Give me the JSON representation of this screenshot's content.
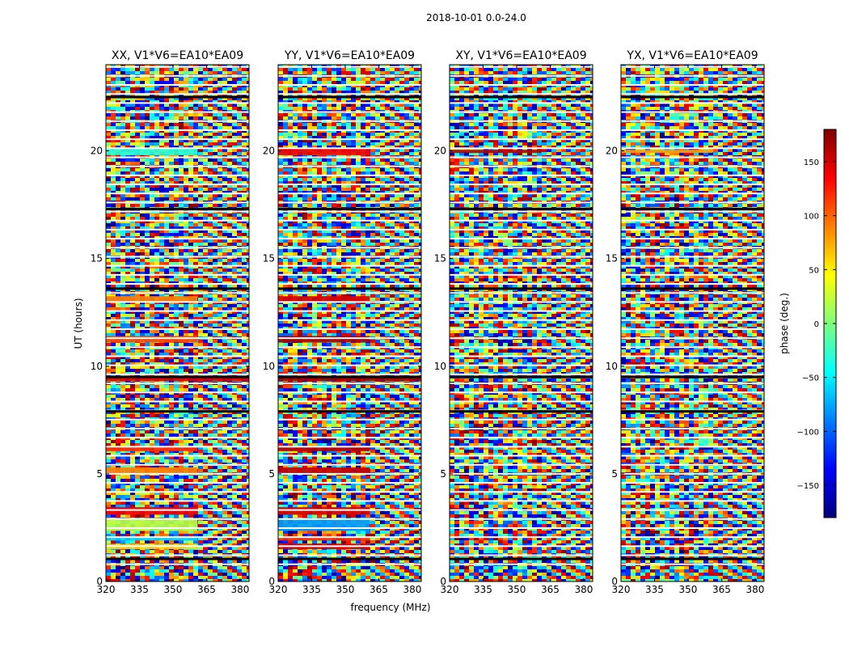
{
  "suptitle": "2018-10-01 0.0-24.0",
  "xlabel": "frequency (MHz)",
  "ylabel": "UT (hours)",
  "colorbar": {
    "label": "phase (deg.)",
    "range": [
      -180,
      180
    ],
    "ticks": [
      150,
      100,
      50,
      0,
      -50,
      -100,
      -150
    ],
    "tick_labels": [
      "150",
      "100",
      "50",
      "0",
      "−50",
      "−100",
      "−150"
    ],
    "colormap": "jet",
    "colors": [
      "#00007f",
      "#0000ff",
      "#007fff",
      "#00ffff",
      "#7fff7f",
      "#ffff00",
      "#ff7f00",
      "#ff0000",
      "#7f0000"
    ]
  },
  "chart_data": [
    {
      "type": "heatmap",
      "title": "XX, V1*V6=EA10*EA09",
      "xlim": [
        320,
        384
      ],
      "ylim": [
        0,
        24
      ],
      "xticks": [
        320,
        335,
        350,
        365,
        380
      ],
      "yticks": [
        0,
        5,
        10,
        15,
        20
      ],
      "value": "phase (deg.)",
      "flagged_hours": [
        1.05,
        7.9,
        9.5,
        13.6,
        17.3,
        22.5
      ],
      "coherent_bands": [
        {
          "ut": [
            1.5,
            1.75
          ],
          "freq": [
            320,
            361
          ],
          "phase": 60
        },
        {
          "ut": [
            1.9,
            2.05
          ],
          "freq": [
            320,
            361
          ],
          "phase": -60
        },
        {
          "ut": [
            2.35,
            2.95
          ],
          "freq": [
            320,
            361
          ],
          "phase": 20
        },
        {
          "ut": [
            3.1,
            3.45
          ],
          "freq": [
            320,
            361
          ],
          "phase": 140
        },
        {
          "ut": [
            5.0,
            5.3
          ],
          "freq": [
            320,
            361
          ],
          "phase": 90
        },
        {
          "ut": [
            6.05,
            6.3
          ],
          "freq": [
            320,
            361
          ],
          "phase": 120
        },
        {
          "ut": [
            9.3,
            9.45
          ],
          "freq": [
            320,
            384
          ],
          "phase": 150
        },
        {
          "ut": [
            11.1,
            11.4
          ],
          "freq": [
            320,
            361
          ],
          "phase": 110
        },
        {
          "ut": [
            13.0,
            13.25
          ],
          "freq": [
            320,
            361
          ],
          "phase": 90
        },
        {
          "ut": [
            19.8,
            20.1
          ],
          "freq": [
            320,
            361
          ],
          "phase": -30
        }
      ]
    },
    {
      "type": "heatmap",
      "title": "YY, V1*V6=EA10*EA09",
      "xlim": [
        320,
        384
      ],
      "ylim": [
        0,
        24
      ],
      "xticks": [
        320,
        335,
        350,
        365,
        380
      ],
      "yticks": [
        0,
        5,
        10,
        15,
        20
      ],
      "value": "phase (deg.)",
      "flagged_hours": [
        1.05,
        7.9,
        9.5,
        13.6,
        17.3,
        22.5
      ],
      "coherent_bands": [
        {
          "ut": [
            1.5,
            1.75
          ],
          "freq": [
            320,
            361
          ],
          "phase": 150
        },
        {
          "ut": [
            1.9,
            2.05
          ],
          "freq": [
            320,
            361
          ],
          "phase": 120
        },
        {
          "ut": [
            2.35,
            2.95
          ],
          "freq": [
            320,
            361
          ],
          "phase": -80
        },
        {
          "ut": [
            3.1,
            3.45
          ],
          "freq": [
            320,
            361
          ],
          "phase": 150
        },
        {
          "ut": [
            5.0,
            5.3
          ],
          "freq": [
            320,
            361
          ],
          "phase": 155
        },
        {
          "ut": [
            6.05,
            6.3
          ],
          "freq": [
            320,
            361
          ],
          "phase": 160
        },
        {
          "ut": [
            9.3,
            9.45
          ],
          "freq": [
            320,
            384
          ],
          "phase": 170
        },
        {
          "ut": [
            11.1,
            11.4
          ],
          "freq": [
            320,
            361
          ],
          "phase": 165
        },
        {
          "ut": [
            13.0,
            13.25
          ],
          "freq": [
            320,
            361
          ],
          "phase": 150
        },
        {
          "ut": [
            19.8,
            20.1
          ],
          "freq": [
            320,
            361
          ],
          "phase": 140
        }
      ]
    },
    {
      "type": "heatmap",
      "title": "XY, V1*V6=EA10*EA09",
      "xlim": [
        320,
        384
      ],
      "ylim": [
        0,
        24
      ],
      "xticks": [
        320,
        335,
        350,
        365,
        380
      ],
      "yticks": [
        0,
        5,
        10,
        15,
        20
      ],
      "value": "phase (deg.)",
      "flagged_hours": [
        1.05,
        7.9,
        9.5,
        13.6,
        17.3,
        22.5
      ],
      "coherent_bands": [
        {
          "ut": [
            19.9,
            20.05
          ],
          "freq": [
            320,
            361
          ],
          "phase": 160
        }
      ]
    },
    {
      "type": "heatmap",
      "title": "YX, V1*V6=EA10*EA09",
      "xlim": [
        320,
        384
      ],
      "ylim": [
        0,
        24
      ],
      "xticks": [
        320,
        335,
        350,
        365,
        380
      ],
      "yticks": [
        0,
        5,
        10,
        15,
        20
      ],
      "value": "phase (deg.)",
      "flagged_hours": [
        1.05,
        7.9,
        9.5,
        13.6,
        17.3,
        22.5
      ],
      "coherent_bands": [
        {
          "ut": [
            19.9,
            20.05
          ],
          "freq": [
            320,
            361
          ],
          "phase": 80
        }
      ]
    }
  ]
}
